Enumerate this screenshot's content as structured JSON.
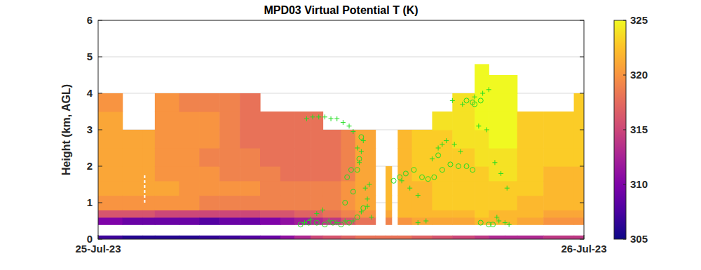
{
  "chart_data": {
    "type": "heatmap",
    "title": "MPD03 Virtual Potential T (K)",
    "y_label": "Height (km, AGL)",
    "xlim": [
      0,
      24
    ],
    "xticks": [
      {
        "value": 0,
        "label": "25-Jul-23"
      },
      {
        "value": 24,
        "label": "26-Jul-23"
      }
    ],
    "ylim": [
      0,
      6
    ],
    "yticks": [
      0,
      1,
      2,
      3,
      4,
      5,
      6
    ],
    "grid": true,
    "colorbar": {
      "range": [
        305,
        325
      ],
      "ticks": [
        305,
        310,
        315,
        320,
        325
      ]
    },
    "cells": {
      "x_edges": [
        0,
        1.2,
        2.2,
        2.8,
        4,
        5,
        6,
        7,
        8,
        9,
        9.7,
        10.5,
        11.1,
        12,
        12.7,
        13.7,
        14.2,
        14.5,
        14.8,
        15.5,
        16.5,
        17.5,
        18.6,
        19.3,
        20.1,
        20.7,
        22,
        23.5,
        24
      ],
      "y_edges": [
        0.4,
        0.6,
        0.8,
        1.2,
        1.6,
        2.0,
        2.5,
        3.0,
        3.5,
        4.0,
        4.5,
        4.8
      ],
      "values": [
        [
          310,
          316,
          320,
          321,
          321,
          321,
          321,
          321,
          320,
          null,
          null
        ],
        [
          309,
          316,
          320,
          321,
          321,
          321,
          321,
          null,
          null,
          null,
          null
        ],
        [
          309,
          316,
          320,
          321,
          321,
          321,
          321,
          null,
          null,
          null,
          null
        ],
        [
          309,
          315,
          320,
          321,
          320,
          320,
          320,
          320,
          320,
          null,
          null
        ],
        [
          309,
          315,
          320,
          320,
          320,
          320,
          320,
          320,
          319,
          null,
          null
        ],
        [
          308,
          315,
          319,
          320,
          320,
          319,
          320,
          320,
          319,
          null,
          null
        ],
        [
          309,
          315,
          319,
          320,
          319,
          319,
          319,
          319,
          319,
          null,
          null
        ],
        [
          309,
          315,
          319,
          320,
          319,
          319,
          318,
          318,
          318,
          null,
          null
        ],
        [
          310,
          316,
          319,
          319,
          319,
          318,
          318,
          318,
          null,
          null,
          null
        ],
        [
          311,
          316,
          319,
          319,
          318,
          318,
          318,
          318,
          null,
          null,
          null
        ],
        [
          312,
          317,
          319,
          319,
          318,
          318,
          318,
          318,
          null,
          null,
          null
        ],
        [
          313,
          317,
          319,
          319,
          318,
          318,
          318,
          318,
          null,
          null,
          null
        ],
        [
          314,
          318,
          319,
          319,
          318,
          318,
          318,
          null,
          null,
          null,
          null
        ],
        [
          316,
          319,
          320,
          320,
          319,
          319,
          319,
          null,
          null,
          null,
          null
        ],
        [
          318,
          320,
          321,
          321,
          321,
          321,
          321,
          null,
          null,
          null,
          null
        ],
        [
          null,
          null,
          null,
          null,
          null,
          null,
          null,
          null,
          null,
          null,
          null
        ],
        [
          319,
          321,
          322,
          322,
          322,
          null,
          null,
          null,
          null,
          null,
          null
        ],
        [
          null,
          null,
          null,
          null,
          null,
          null,
          null,
          null,
          null,
          null,
          null
        ],
        [
          320,
          322,
          322,
          322,
          322,
          322,
          322,
          null,
          null,
          null,
          null
        ],
        [
          321,
          322,
          322,
          322,
          323,
          323,
          323,
          null,
          null,
          null,
          null
        ],
        [
          321,
          322,
          323,
          323,
          323,
          323,
          323,
          324,
          null,
          null,
          null
        ],
        [
          321,
          322,
          323,
          323,
          323,
          323,
          324,
          324,
          324,
          null,
          null
        ],
        [
          322,
          323,
          323,
          323,
          323,
          324,
          324,
          325,
          325,
          325,
          325
        ],
        [
          322,
          322,
          323,
          323,
          324,
          324,
          325,
          325,
          325,
          325,
          null
        ],
        [
          322,
          322,
          323,
          323,
          324,
          324,
          325,
          325,
          325,
          325,
          null
        ],
        [
          321,
          322,
          322,
          323,
          323,
          323,
          323,
          323,
          null,
          null,
          null
        ],
        [
          320,
          321,
          322,
          322,
          322,
          323,
          323,
          323,
          null,
          null,
          null
        ],
        [
          320,
          321,
          322,
          322,
          322,
          323,
          323,
          323,
          323,
          null,
          null
        ]
      ]
    },
    "surface": {
      "y": [
        0,
        0.1
      ],
      "values": [
        307,
        306,
        306,
        306,
        306,
        306.5,
        307,
        308,
        309,
        311,
        313,
        315,
        316,
        317,
        318,
        318,
        318,
        318,
        318,
        317,
        316,
        315,
        314,
        313,
        313,
        313,
        314,
        314
      ]
    },
    "dashed_line": {
      "x": [
        2.3,
        2.3
      ],
      "y": [
        1.0,
        1.8
      ]
    },
    "series": [
      {
        "type": "scatter",
        "marker": "plus",
        "color": "#22dd22",
        "x": [
          10.3,
          10.6,
          10.9,
          11.2,
          11.5,
          11.8,
          12.1,
          12.4,
          12.6,
          12.8,
          13.0,
          13.1,
          12.9,
          13.2,
          13.4,
          13.3,
          13.5,
          10.2,
          10.5,
          10.8,
          11.1,
          11.4,
          11.8,
          12.2,
          12.6,
          13.0,
          13.3,
          15.0,
          15.4,
          15.8,
          16.2,
          16.5,
          16.8,
          17.2,
          17.6,
          17.9,
          17.0,
          17.5,
          18.0,
          18.6,
          19.0,
          19.3,
          18.8,
          19.2,
          19.6,
          19.9,
          20.2,
          19.8,
          20.1,
          15.8,
          19.7,
          20.3
        ],
        "values": [
          3.3,
          3.35,
          3.35,
          3.35,
          3.3,
          3.3,
          3.2,
          3.1,
          2.95,
          2.5,
          2.4,
          2.7,
          2.1,
          1.4,
          1.5,
          1.1,
          0.6,
          0.45,
          0.55,
          0.7,
          0.8,
          0.5,
          0.45,
          0.5,
          0.5,
          0.75,
          0.9,
          1.6,
          1.4,
          1.2,
          0.5,
          2.2,
          2.5,
          2.7,
          2.6,
          2.4,
          2.6,
          3.8,
          3.7,
          3.9,
          4.0,
          4.1,
          3.1,
          3.0,
          2.1,
          1.8,
          1.4,
          0.5,
          0.45,
          0.45,
          0.6,
          0.4
        ]
      },
      {
        "type": "scatter",
        "marker": "circle",
        "color": "#22dd22",
        "x": [
          10.0,
          10.4,
          10.8,
          11.2,
          11.6,
          12.0,
          12.4,
          12.8,
          13.1,
          12.2,
          12.6,
          12.3,
          12.5,
          12.8,
          12.9,
          13.0,
          14.6,
          14.9,
          15.2,
          15.6,
          16.0,
          16.3,
          16.6,
          17.0,
          17.4,
          17.8,
          18.2,
          18.5,
          16.8,
          18.6,
          18.9,
          18.5,
          18.2,
          19.3,
          19.5,
          18.9
        ],
        "values": [
          0.4,
          0.45,
          0.45,
          0.4,
          0.45,
          0.4,
          0.45,
          0.6,
          0.85,
          1.0,
          1.3,
          1.7,
          1.9,
          1.9,
          2.2,
          2.8,
          1.6,
          1.7,
          1.8,
          1.9,
          1.7,
          1.65,
          1.7,
          1.9,
          2.05,
          2.0,
          2.0,
          1.9,
          2.3,
          3.7,
          3.8,
          3.75,
          3.8,
          0.4,
          0.4,
          0.45
        ]
      }
    ]
  }
}
